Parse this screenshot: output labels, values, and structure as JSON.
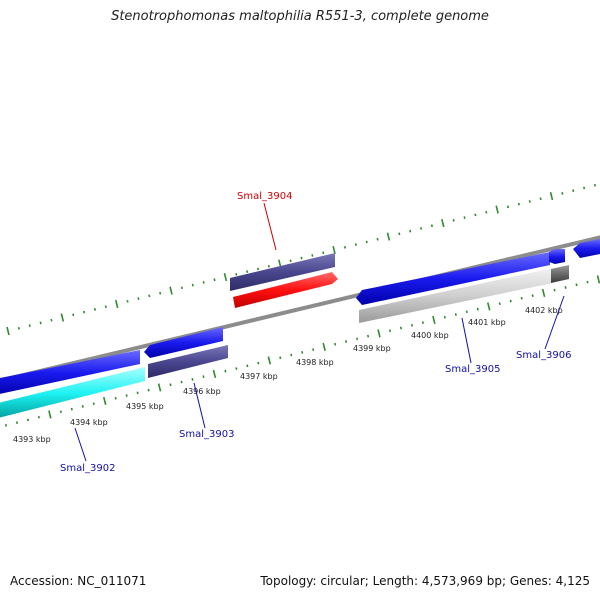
{
  "title": "Stenotrophomonas maltophilia R551-3, complete genome",
  "footer": {
    "accession": "Accession: NC_011071",
    "summary": "Topology: circular; Length: 4,573,969 bp; Genes: 4,125"
  },
  "colors": {
    "backbone": "#8c8c8c",
    "ticks": "#2e8b2e",
    "tick_labels": "#222222",
    "gene_label_blue": "#1010a8",
    "gene_label_red": "#cc0000"
  },
  "scale_labels": [
    "4393 kbp",
    "4394 kbp",
    "4395 kbp",
    "4396 kbp",
    "4397 kbp",
    "4398 kbp",
    "4399 kbp",
    "4400 kbp",
    "4401 kbp",
    "4402 kbp"
  ],
  "gene_labels": [
    "Smal_3902",
    "Smal_3903",
    "Smal_3904",
    "Smal_3905",
    "Smal_3906"
  ]
}
